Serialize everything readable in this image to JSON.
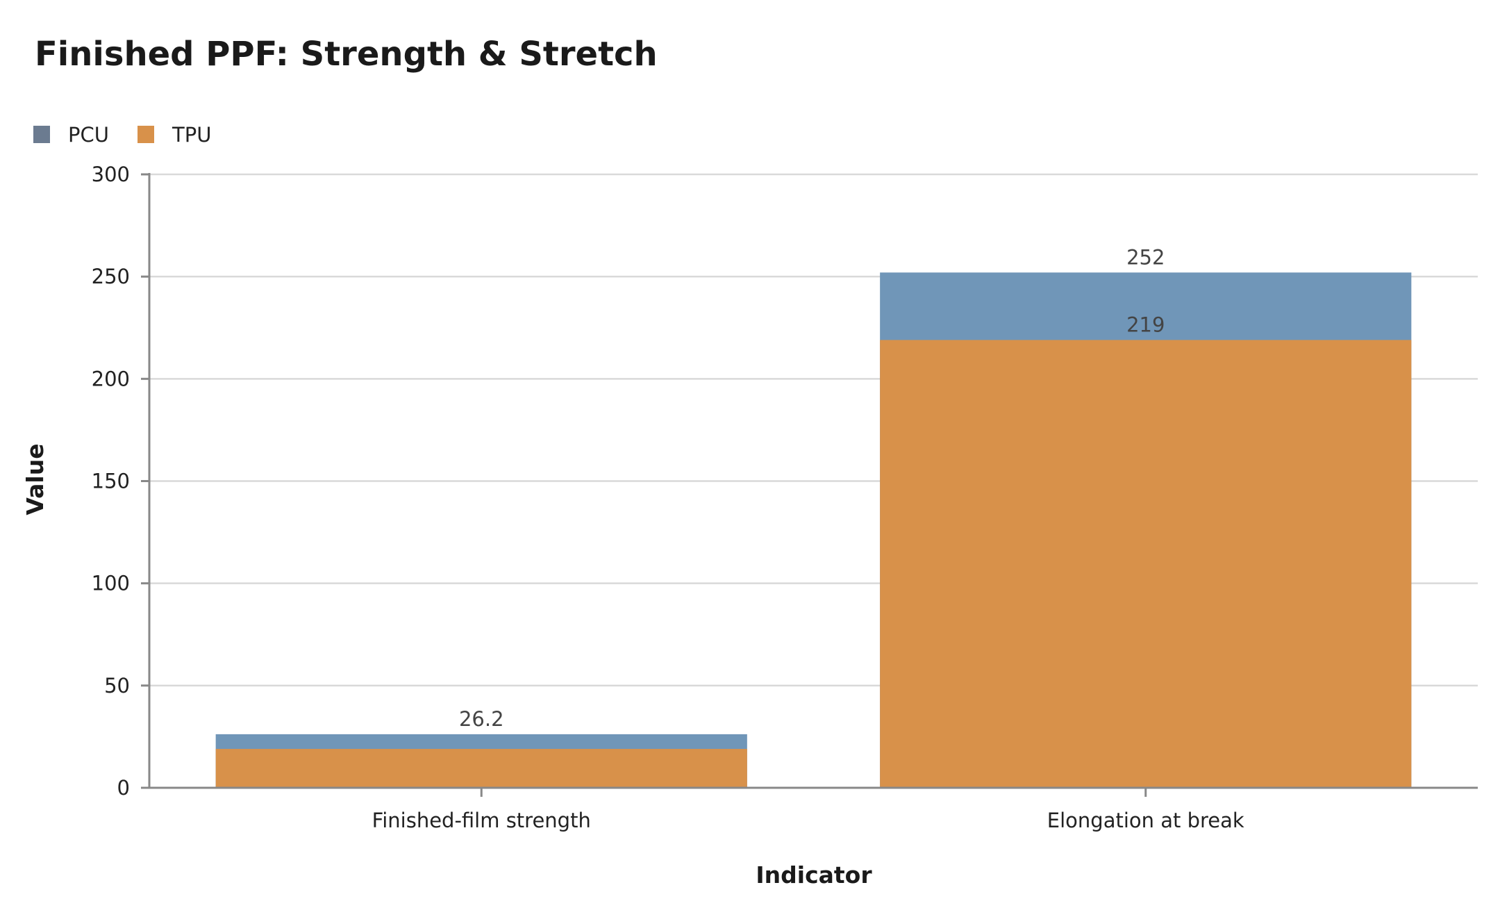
{
  "chart_data": {
    "type": "bar",
    "stacked": "overlay",
    "title": "Finished PPF: Strength & Stretch",
    "xlabel": "Indicator",
    "ylabel": "Value",
    "ylim": [
      0,
      300
    ],
    "yticks": [
      0,
      50,
      100,
      150,
      200,
      250,
      300
    ],
    "categories": [
      "Finished-film strength",
      "Elongation at break"
    ],
    "series": [
      {
        "name": "PCU",
        "values": [
          26.2,
          252
        ],
        "labels": [
          "26.2",
          "252"
        ],
        "color": "#7096b8",
        "legend_color": "#6b7b90"
      },
      {
        "name": "TPU",
        "values": [
          19,
          219
        ],
        "labels": [
          "",
          "219"
        ],
        "color": "#d8914a",
        "legend_color": "#d8914a"
      }
    ],
    "grid": true,
    "legend_position": "top-left"
  }
}
